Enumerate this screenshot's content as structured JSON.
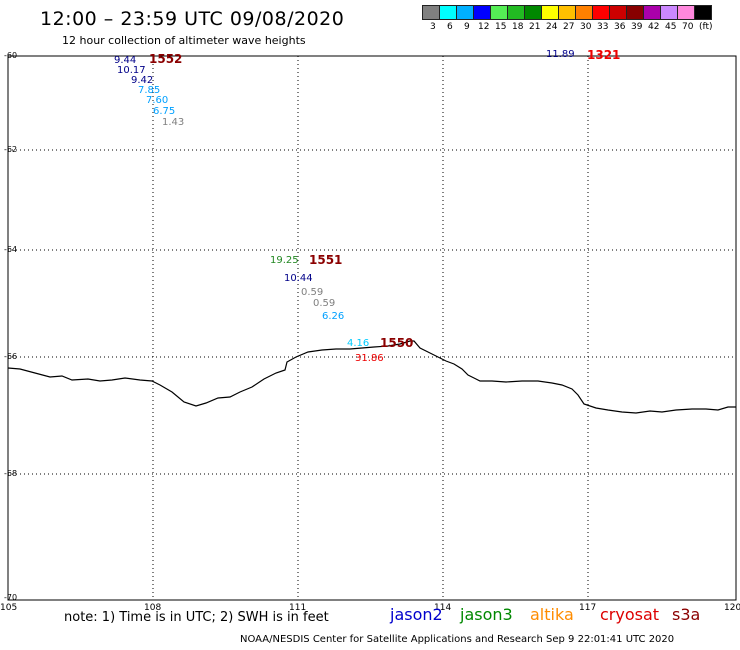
{
  "header": {
    "title": "12:00 – 23:59 UTC 09/08/2020",
    "subtitle": "12 hour collection of altimeter wave heights"
  },
  "legend": {
    "colors": [
      "#808080",
      "#00ffff",
      "#00b0ff",
      "#0000ff",
      "#55ee55",
      "#22bb22",
      "#008800",
      "#ffff00",
      "#ffbf00",
      "#ff8000",
      "#ff0000",
      "#cc0000",
      "#880000",
      "#aa00aa",
      "#cc88ff",
      "#ff88dd",
      "#000000"
    ],
    "labels": [
      "3",
      "6",
      "9",
      "12",
      "15",
      "18",
      "21",
      "24",
      "27",
      "30",
      "33",
      "36",
      "39",
      "42",
      "45",
      "70",
      "(ft)"
    ]
  },
  "axes": {
    "y_labels": [
      "-60",
      "-62",
      "-64",
      "-66",
      "-68",
      "-70"
    ],
    "x_labels": [
      "105",
      "108",
      "111",
      "114",
      "117",
      "120"
    ]
  },
  "passes": [
    {
      "id": "1552",
      "labels": [
        "9.44",
        "10.17",
        "9.42",
        "7.85",
        "7.60",
        "6.75",
        "1.43"
      ]
    },
    {
      "id": "1321",
      "labels": [
        "11.89"
      ]
    },
    {
      "id": "1551",
      "labels": [
        "19.25",
        "10.44",
        "0.59",
        "0.59",
        "6.26"
      ]
    },
    {
      "id": "1550",
      "labels": [
        "4.16",
        "31.86"
      ]
    }
  ],
  "footer": {
    "note": "note: 1) Time is in UTC; 2) SWH is in feet",
    "satellites": [
      {
        "name": "jason2",
        "color": "#0000cc"
      },
      {
        "name": "jason3",
        "color": "#008800"
      },
      {
        "name": "altika",
        "color": "#ff8c00"
      },
      {
        "name": "cryosat",
        "color": "#dd0000"
      },
      {
        "name": "s3a",
        "color": "#8b0000"
      }
    ],
    "credit": "NOAA/NESDIS Center for Satellite Applications and Research   Sep  9 22:01:41 UTC 2020"
  }
}
